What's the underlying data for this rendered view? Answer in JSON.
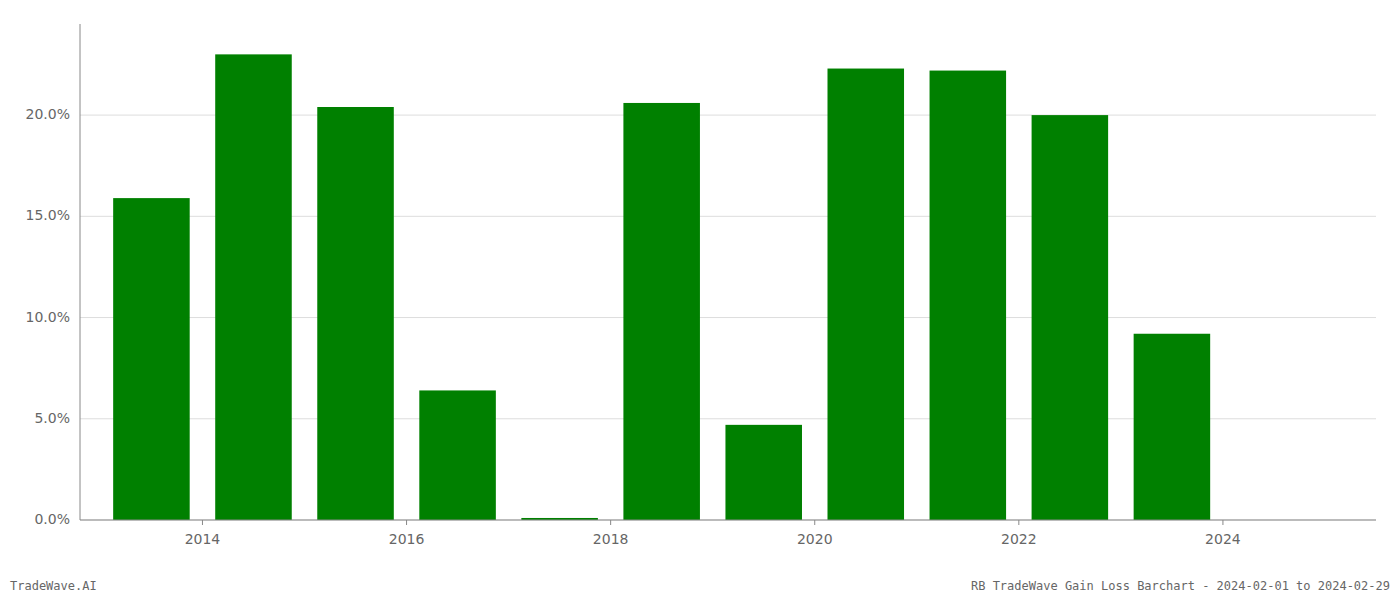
{
  "chart_data": {
    "type": "bar",
    "x": [
      2013,
      2014,
      2015,
      2016,
      2017,
      2018,
      2019,
      2020,
      2021,
      2022,
      2023,
      2024
    ],
    "values": [
      0.159,
      0.23,
      0.204,
      0.064,
      0.001,
      0.206,
      0.047,
      0.223,
      0.222,
      0.2,
      0.092,
      0.0
    ],
    "color": "#008000",
    "xlim": [
      2012.3,
      2025.0
    ],
    "xticks": [
      {
        "value": 2013.5,
        "label": "2014"
      },
      {
        "value": 2015.5,
        "label": "2016"
      },
      {
        "value": 2017.5,
        "label": "2018"
      },
      {
        "value": 2019.5,
        "label": "2020"
      },
      {
        "value": 2021.5,
        "label": "2022"
      },
      {
        "value": 2023.5,
        "label": "2024"
      }
    ],
    "ylim": [
      0,
      0.245
    ],
    "yticks": [
      {
        "value": 0,
        "label": "0.0%"
      },
      {
        "value": 0.05,
        "label": "5.0%"
      },
      {
        "value": 0.1,
        "label": "10.0%"
      },
      {
        "value": 0.15,
        "label": "15.0%"
      },
      {
        "value": 0.2,
        "label": "20.0%"
      }
    ],
    "grid": true,
    "annotations": [
      "TradeWave.AI",
      "RB TradeWave Gain Loss Barchart - 2024-02-01 to 2024-02-29"
    ]
  }
}
